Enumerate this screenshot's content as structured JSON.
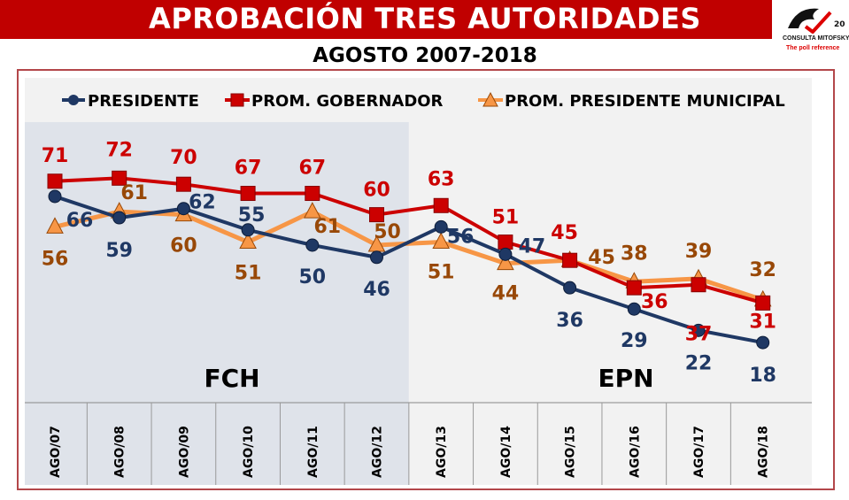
{
  "header": {
    "title": "APROBACIÓN TRES AUTORIDADES",
    "subtitle": "AGOSTO 2007-2018"
  },
  "logo": {
    "name": "CONSULTA MITOFSKY",
    "tagline": "The poll reference",
    "badge": "20"
  },
  "chart_data": {
    "type": "line",
    "categories": [
      "AGO/07",
      "AGO/08",
      "AGO/09",
      "AGO/10",
      "AGO/11",
      "AGO/12",
      "AGO/13",
      "AGO/14",
      "AGO/15",
      "AGO/16",
      "AGO/17",
      "AGO/18"
    ],
    "series": [
      {
        "name": "PRESIDENTE",
        "color": "#1f3864",
        "label_color": "#1f3864",
        "marker": "circle",
        "values": [
          66,
          59,
          62,
          55,
          50,
          46,
          56,
          47,
          36,
          29,
          22,
          18
        ]
      },
      {
        "name": "PROM. GOBERNADOR",
        "color": "#cc0000",
        "label_color": "#cc0000",
        "marker": "square",
        "values": [
          71,
          72,
          70,
          67,
          67,
          60,
          63,
          51,
          45,
          36,
          37,
          31
        ]
      },
      {
        "name": "PROM. PRESIDENTE MUNICIPAL",
        "color": "#f79646",
        "label_color": "#984807",
        "marker": "triangle",
        "values": [
          56,
          61,
          60,
          51,
          61,
          50,
          51,
          44,
          45,
          38,
          39,
          32
        ]
      }
    ],
    "regions": [
      {
        "label": "FCH",
        "from": "AGO/07",
        "to": "AGO/12",
        "color": "#dfe3ea"
      },
      {
        "label": "EPN",
        "from": "AGO/13",
        "to": "AGO/18",
        "color": "#f2f2f2"
      }
    ],
    "legend": "top",
    "grid": false,
    "ylim": [
      0,
      80
    ]
  }
}
